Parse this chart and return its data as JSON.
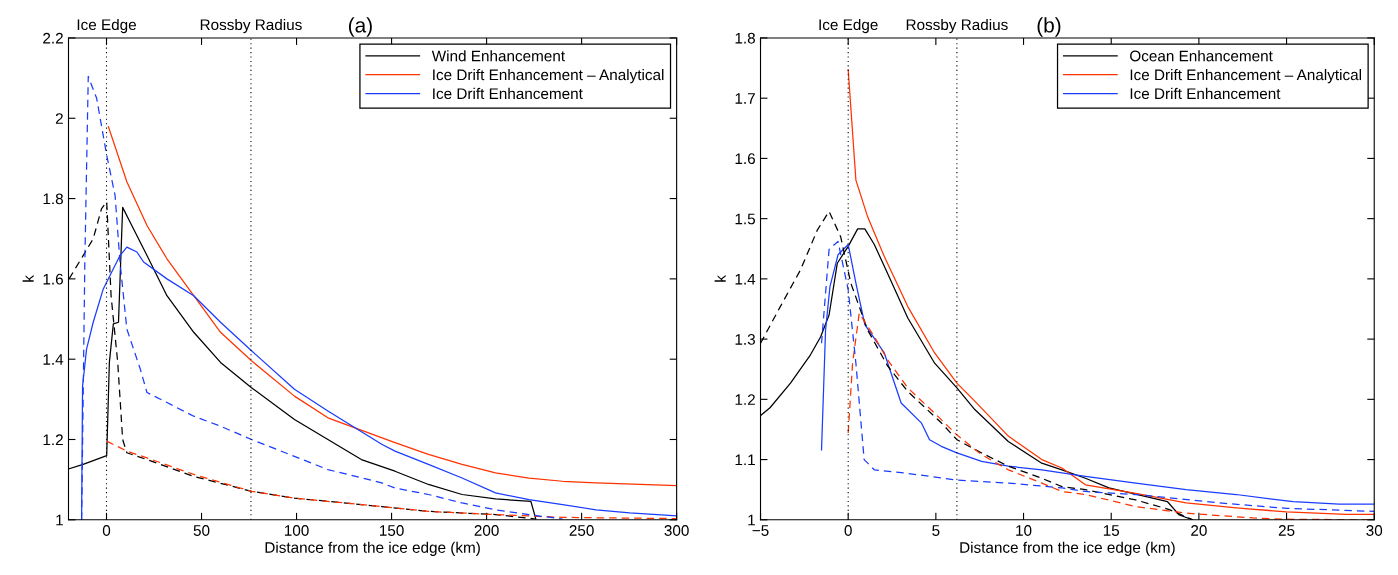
{
  "chart_data": [
    {
      "type": "line",
      "title": "(a)",
      "xlabel": "Distance from the ice edge (km)",
      "ylabel": "k",
      "xlim": [
        -20,
        300
      ],
      "xticks": [
        0,
        50,
        100,
        150,
        200,
        250,
        300
      ],
      "ylim": [
        1,
        2.2
      ],
      "yticks": [
        1,
        1.2,
        1.4,
        1.6,
        1.8,
        2,
        2.2
      ],
      "grid": false,
      "legend": "top right",
      "line_style": "solid",
      "marker": "none",
      "ref_lines": [
        {
          "axis": "x",
          "value": 0,
          "label": "Ice Edge",
          "line_style": "dotted",
          "color": "#000000"
        },
        {
          "axis": "x",
          "value": 76,
          "label": "Rossby Radius",
          "line_style": "dotted",
          "color": "#000000"
        }
      ],
      "series": [
        {
          "name": "Wind Enhancement",
          "color": "#000000",
          "x": [
            -19.7,
            -12.3,
            0.1,
            1.5,
            3.6,
            6.3,
            8.5,
            13.3,
            21.3,
            31.8,
            45.9,
            60,
            76.3,
            98.9,
            134.1,
            151.8,
            169.4,
            187.1,
            204.7,
            223.3,
            225.9
          ],
          "values": [
            1.127,
            1.138,
            1.16,
            1.392,
            1.488,
            1.492,
            1.778,
            1.733,
            1.658,
            1.558,
            1.467,
            1.392,
            1.329,
            1.25,
            1.15,
            1.121,
            1.088,
            1.063,
            1.052,
            1.046,
            1.002
          ]
        },
        {
          "name": "Ice Drift Enhancement – Analytical",
          "color": "#ff3300",
          "x": [
            1,
            10.7,
            21.3,
            31.8,
            45.9,
            60,
            76.3,
            98.9,
            116.5,
            151.8,
            169.4,
            187.1,
            204.7,
            222.3,
            240,
            257.6,
            300
          ],
          "values": [
            1.979,
            1.842,
            1.733,
            1.65,
            1.558,
            1.467,
            1.396,
            1.308,
            1.254,
            1.192,
            1.163,
            1.138,
            1.117,
            1.104,
            1.096,
            1.092,
            1.085
          ]
        },
        {
          "name": "Ice Drift Enhancement",
          "color": "#1a3cff",
          "x": [
            -13.1,
            -12.6,
            -10.5,
            -7,
            -1.7,
            3.6,
            7.1,
            10.7,
            16,
            19.5,
            31.8,
            45.9,
            60,
            76.3,
            98.9,
            116.5,
            144.8,
            151.8,
            169.4,
            187.1,
            204.7,
            222.3,
            240,
            257.6,
            275.3,
            300
          ],
          "values": [
            1.0,
            1.333,
            1.425,
            1.492,
            1.575,
            1.625,
            1.658,
            1.679,
            1.667,
            1.642,
            1.6,
            1.558,
            1.492,
            1.421,
            1.325,
            1.271,
            1.188,
            1.171,
            1.138,
            1.104,
            1.067,
            1.05,
            1.038,
            1.025,
            1.017,
            1.01
          ]
        },
        {
          "color": "#000000",
          "line_style": "dashed",
          "x": [
            -19.7,
            -12.3,
            -7,
            -2.6,
            0.1,
            2.4,
            5.9,
            8.5,
            10.7,
            21.3,
            45.9,
            76.3,
            98.9,
            144.8,
            169.4,
            204.7,
            225.9
          ],
          "values": [
            1.6,
            1.658,
            1.7,
            1.775,
            1.792,
            1.558,
            1.392,
            1.2,
            1.167,
            1.15,
            1.108,
            1.071,
            1.054,
            1.033,
            1.021,
            1.013,
            1.002
          ]
        },
        {
          "color": "#ff3300",
          "line_style": "dashed",
          "x": [
            0.1,
            10.7,
            21.3,
            45.9,
            76.3,
            98.9,
            144.8,
            169.4,
            204.7,
            240,
            300
          ],
          "values": [
            1.196,
            1.171,
            1.154,
            1.113,
            1.071,
            1.054,
            1.033,
            1.021,
            1.013,
            1.006,
            1.003
          ]
        },
        {
          "color": "#1a3cff",
          "line_style": "dashed",
          "x": [
            -13.1,
            -11.4,
            -9.6,
            -5.2,
            0.1,
            4.5,
            7.1,
            10.7,
            17.8,
            21.3,
            31.8,
            45.9,
            60,
            76.3,
            98.9,
            116.5,
            144.8,
            151.8,
            169.4,
            187.1,
            204.7,
            222.3,
            240
          ],
          "values": [
            1.0,
            1.642,
            2.104,
            2.05,
            1.908,
            1.808,
            1.642,
            1.475,
            1.375,
            1.317,
            1.292,
            1.258,
            1.233,
            1.2,
            1.158,
            1.125,
            1.092,
            1.079,
            1.063,
            1.042,
            1.025,
            1.013,
            1.002
          ]
        }
      ]
    },
    {
      "type": "line",
      "title": "(b)",
      "xlabel": "Distance from the ice edge (km)",
      "ylabel": "k",
      "xlim": [
        -5,
        30
      ],
      "xticks": [
        {
          "value": -5,
          "label": "−5"
        },
        0,
        5,
        10,
        15,
        20,
        25,
        30
      ],
      "ylim": [
        1,
        1.8
      ],
      "yticks": [
        1,
        1.1,
        1.2,
        1.3,
        1.4,
        1.5,
        1.6,
        1.7,
        1.8
      ],
      "grid": false,
      "legend": "top right",
      "line_style": "solid",
      "marker": "none",
      "ref_lines": [
        {
          "axis": "x",
          "value": 0,
          "label": "Ice Edge",
          "line_style": "dotted",
          "color": "#000000"
        },
        {
          "axis": "x",
          "value": 6.2,
          "label": "Rossby Radius",
          "line_style": "dotted",
          "color": "#000000"
        }
      ],
      "series": [
        {
          "name": "Ocean Enhancement",
          "color": "#000000",
          "x": [
            -5,
            -4.46,
            -3.29,
            -2.15,
            -1.57,
            -1.09,
            -0.62,
            0,
            0.54,
            0.95,
            1.49,
            2.06,
            3.4,
            4.93,
            6.2,
            7.22,
            9.13,
            11.04,
            12.19,
            13.53,
            14.87,
            18.21,
            18.88,
            19.65
          ],
          "values": [
            1.173,
            1.186,
            1.227,
            1.274,
            1.304,
            1.34,
            1.426,
            1.454,
            1.483,
            1.483,
            1.457,
            1.421,
            1.335,
            1.26,
            1.219,
            1.183,
            1.13,
            1.094,
            1.083,
            1.069,
            1.053,
            1.03,
            1.008,
            1.0
          ]
        },
        {
          "name": "Ice Drift Enhancement – Analytical",
          "color": "#ff3300",
          "x": [
            0,
            0.44,
            1.11,
            2.06,
            3.4,
            4.93,
            6.2,
            7.22,
            9.13,
            11.04,
            12.19,
            13.53,
            16.4,
            19.27,
            22.13,
            25,
            28.4,
            30
          ],
          "values": [
            1.747,
            1.564,
            1.503,
            1.437,
            1.354,
            1.277,
            1.227,
            1.197,
            1.139,
            1.1,
            1.086,
            1.058,
            1.044,
            1.028,
            1.02,
            1.013,
            1.009,
            1.009
          ]
        },
        {
          "name": "Ice Drift Enhancement",
          "color": "#1a3cff",
          "x": [
            -1.52,
            -1.29,
            -1.04,
            -0.58,
            0,
            0.44,
            0.95,
            2.06,
            3.02,
            4.17,
            4.64,
            5.31,
            6.2,
            7.61,
            9.13,
            11.04,
            13.53,
            16.4,
            19.27,
            22.13,
            25.38,
            28,
            30
          ],
          "values": [
            1.116,
            1.315,
            1.387,
            1.44,
            1.457,
            1.393,
            1.324,
            1.277,
            1.194,
            1.161,
            1.133,
            1.122,
            1.111,
            1.097,
            1.089,
            1.083,
            1.072,
            1.061,
            1.05,
            1.042,
            1.03,
            1.026,
            1.026
          ]
        },
        {
          "color": "#000000",
          "line_style": "dashed",
          "x": [
            -5,
            -3.87,
            -2.72,
            -1.76,
            -1.09,
            -0.43,
            0.15,
            1.11,
            2.26,
            3.4,
            5.31,
            6.2,
            7.61,
            9.13,
            11.04,
            12.19,
            13.53,
            16.4,
            18.31,
            19.65
          ],
          "values": [
            1.293,
            1.354,
            1.415,
            1.481,
            1.512,
            1.47,
            1.393,
            1.315,
            1.255,
            1.213,
            1.161,
            1.133,
            1.111,
            1.089,
            1.069,
            1.055,
            1.05,
            1.033,
            1.017,
            1.0
          ]
        },
        {
          "color": "#ff3300",
          "line_style": "dashed",
          "x": [
            0,
            0.25,
            0.63,
            1.49,
            2.26,
            3.4,
            4.93,
            6.2,
            7.61,
            9.13,
            11.04,
            12.19,
            13.53,
            16.4,
            19.27,
            23.09,
            25,
            30
          ],
          "values": [
            1.144,
            1.26,
            1.343,
            1.304,
            1.265,
            1.219,
            1.177,
            1.141,
            1.108,
            1.083,
            1.061,
            1.047,
            1.042,
            1.022,
            1.011,
            1.003,
            1.001,
            1.0
          ]
        },
        {
          "color": "#1a3cff",
          "line_style": "dashed",
          "x": [
            -1.52,
            -1.09,
            -0.58,
            0,
            0.44,
            0.91,
            1.49,
            3.4,
            6.2,
            9.13,
            12.19,
            13.53,
            16.4,
            21.17,
            25,
            30
          ],
          "values": [
            1.293,
            1.449,
            1.462,
            1.382,
            1.26,
            1.1,
            1.083,
            1.077,
            1.066,
            1.061,
            1.053,
            1.047,
            1.042,
            1.028,
            1.019,
            1.014
          ]
        }
      ]
    }
  ]
}
